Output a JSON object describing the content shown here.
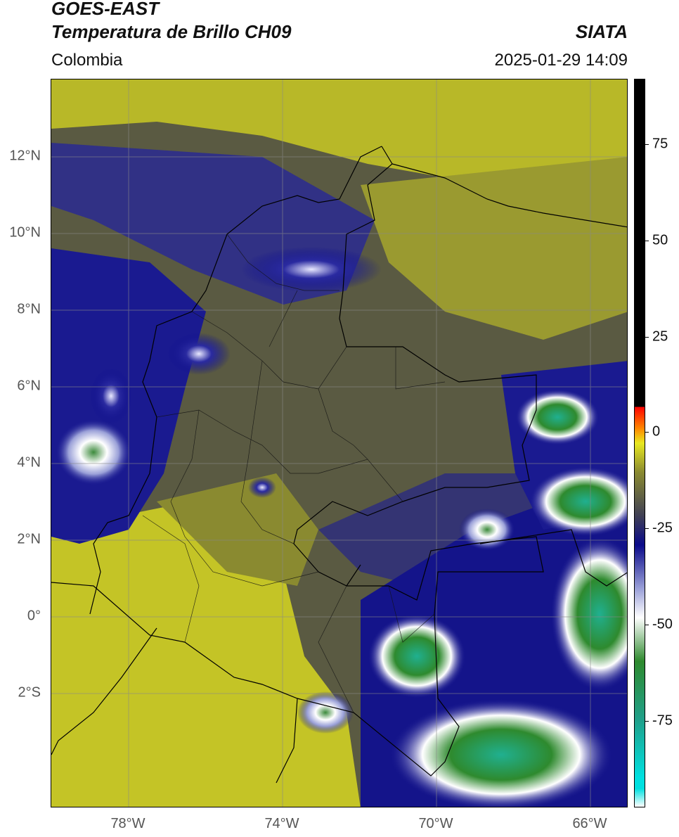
{
  "header": {
    "satellite": "GOES-EAST",
    "product": "Temperatura de Brillo CH09",
    "region": "Colombia",
    "source": "SIATA",
    "datetime": "2025-01-29 14:09"
  },
  "map": {
    "lat_ticks": [
      "12°N",
      "10°N",
      "8°N",
      "6°N",
      "4°N",
      "2°N",
      "0°",
      "2°S"
    ],
    "lon_ticks": [
      "78°W",
      "74°W",
      "70°W",
      "66°W"
    ]
  },
  "colorbar": {
    "ticks": [
      "75",
      "50",
      "25",
      "0",
      "-25",
      "-50",
      "-75"
    ],
    "colors": [
      "#00e0e0",
      "#20a08a",
      "#2e8a2e",
      "#ffffff",
      "#9aa0d8",
      "#0a0a8a",
      "#404055",
      "#8a8a30",
      "#e8e820",
      "#ff8800",
      "#ff0000",
      "#000000"
    ]
  }
}
